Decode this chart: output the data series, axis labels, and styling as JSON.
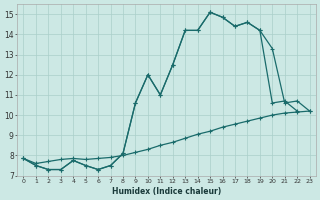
{
  "xlabel": "Humidex (Indice chaleur)",
  "bg_color": "#cce8e4",
  "grid_color": "#aacfca",
  "line_color": "#1a6b6b",
  "xlim": [
    -0.5,
    23.5
  ],
  "ylim": [
    7,
    15.5
  ],
  "yticks": [
    7,
    8,
    9,
    10,
    11,
    12,
    13,
    14,
    15
  ],
  "xticks": [
    0,
    1,
    2,
    3,
    4,
    5,
    6,
    7,
    8,
    9,
    10,
    11,
    12,
    13,
    14,
    15,
    16,
    17,
    18,
    19,
    20,
    21,
    22,
    23
  ],
  "line1_x": [
    0,
    1,
    2,
    3,
    4,
    5,
    6,
    7,
    8,
    9,
    10,
    11,
    12,
    13,
    14,
    15,
    16,
    17,
    18,
    19,
    20,
    21,
    22
  ],
  "line1_y": [
    7.85,
    7.5,
    7.3,
    7.3,
    7.75,
    7.5,
    7.3,
    7.5,
    8.1,
    10.6,
    12.0,
    11.0,
    12.5,
    14.2,
    14.2,
    15.1,
    14.85,
    14.4,
    14.6,
    14.2,
    10.6,
    10.7,
    10.2
  ],
  "line2_x": [
    0,
    1,
    2,
    3,
    4,
    5,
    6,
    7,
    8,
    9,
    10,
    11,
    12,
    13,
    14,
    15,
    16,
    17,
    18,
    19,
    20,
    21,
    22,
    23
  ],
  "line2_y": [
    7.85,
    7.5,
    7.3,
    7.3,
    7.75,
    7.5,
    7.3,
    7.5,
    8.1,
    10.6,
    12.0,
    11.0,
    12.5,
    14.2,
    14.2,
    15.1,
    14.85,
    14.4,
    14.6,
    14.2,
    13.3,
    10.6,
    10.7,
    10.2
  ],
  "line3_x": [
    0,
    1,
    2,
    3,
    4,
    5,
    6,
    7,
    8,
    9,
    10,
    11,
    12,
    13,
    14,
    15,
    16,
    17,
    18,
    19,
    20,
    21,
    22,
    23
  ],
  "line3_y": [
    7.85,
    7.6,
    7.7,
    7.8,
    7.85,
    7.8,
    7.85,
    7.9,
    8.0,
    8.15,
    8.3,
    8.5,
    8.65,
    8.85,
    9.05,
    9.2,
    9.4,
    9.55,
    9.7,
    9.85,
    10.0,
    10.1,
    10.15,
    10.2
  ]
}
